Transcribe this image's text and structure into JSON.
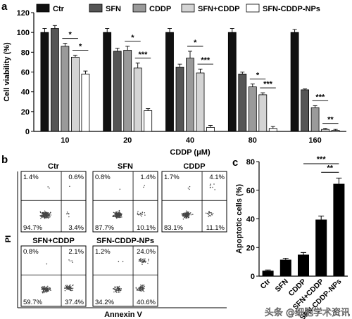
{
  "panels": {
    "a": "a",
    "b": "b",
    "c": "c"
  },
  "chart_data": [
    {
      "type": "bar",
      "panel": "a",
      "xlabel": "CDDP (μM)",
      "ylabel": "Cell viability (%)",
      "ylim": [
        0,
        120
      ],
      "yticks": [
        "0",
        "20",
        "40",
        "60",
        "80",
        "100",
        "120"
      ],
      "categories": [
        "10",
        "20",
        "40",
        "80",
        "160"
      ],
      "legend_placement": "top",
      "series": [
        {
          "name": "Ctr",
          "color": "#111111",
          "values": [
            100,
            100,
            100,
            100,
            100
          ],
          "errors": [
            4,
            4,
            4,
            4,
            3
          ]
        },
        {
          "name": "SFN",
          "color": "#555555",
          "values": [
            104,
            81,
            65,
            58,
            42
          ],
          "errors": [
            3,
            3,
            3,
            2,
            1
          ]
        },
        {
          "name": "CDDP",
          "color": "#9a9a9a",
          "values": [
            86,
            82,
            74,
            45,
            24
          ],
          "errors": [
            3,
            4,
            7,
            3,
            2
          ]
        },
        {
          "name": "SFN+CDDP",
          "color": "#d4d4d4",
          "values": [
            75,
            64,
            59,
            37,
            2
          ],
          "errors": [
            2,
            5,
            4,
            2,
            1
          ]
        },
        {
          "name": "SFN-CDDP-NPs",
          "color": "#ffffff",
          "values": [
            58,
            21,
            4,
            3,
            1
          ],
          "errors": [
            3,
            2,
            2,
            2,
            1
          ]
        }
      ],
      "significance": [
        {
          "group": 0,
          "from": 2,
          "to": 3,
          "label": "*"
        },
        {
          "group": 0,
          "from": 3,
          "to": 4,
          "label": "*"
        },
        {
          "group": 1,
          "from": 2,
          "to": 3,
          "label": "*"
        },
        {
          "group": 1,
          "from": 3,
          "to": 4,
          "label": "***"
        },
        {
          "group": 2,
          "from": 2,
          "to": 3,
          "label": "*"
        },
        {
          "group": 2,
          "from": 3,
          "to": 4,
          "label": "***"
        },
        {
          "group": 3,
          "from": 2,
          "to": 3,
          "label": "*"
        },
        {
          "group": 3,
          "from": 3,
          "to": 4,
          "label": "***"
        },
        {
          "group": 4,
          "from": 2,
          "to": 3,
          "label": "***"
        },
        {
          "group": 4,
          "from": 3,
          "to": 4,
          "label": "**"
        }
      ]
    },
    {
      "type": "scatter",
      "panel": "b",
      "xlabel": "Annexin V",
      "ylabel": "PI",
      "plots": [
        {
          "title": "Ctr",
          "quadrants": [
            "1.4%",
            "0.6%",
            "94.7%",
            "3.4%"
          ]
        },
        {
          "title": "SFN",
          "quadrants": [
            "0.8%",
            "1.4%",
            "87.7%",
            "10.1%"
          ]
        },
        {
          "title": "CDDP",
          "quadrants": [
            "1.7%",
            "4.1%",
            "83.1%",
            "11.1%"
          ]
        },
        {
          "title": "SFN+CDDP",
          "quadrants": [
            "0.8%",
            "2.1%",
            "59.7%",
            "37.4%"
          ]
        },
        {
          "title": "SFN-CDDP-NPs",
          "quadrants": [
            "1.2%",
            "24.0%",
            "34.2%",
            "40.6%"
          ]
        }
      ]
    },
    {
      "type": "bar",
      "panel": "c",
      "ylabel": "Apoptotic cells (%)",
      "ylim": [
        0,
        80
      ],
      "yticks": [
        "0",
        "20",
        "40",
        "60",
        "80"
      ],
      "categories": [
        "Ctr",
        "SFN",
        "CDDP",
        "SFN+CDDP",
        "SFN-CDDP-NPs"
      ],
      "values": [
        3.8,
        11.5,
        15,
        39.5,
        64.5
      ],
      "errors": [
        0.5,
        1,
        1.5,
        2.5,
        4
      ],
      "color": "#000000",
      "significance": [
        {
          "from": 2,
          "to": 4,
          "label": "***"
        },
        {
          "from": 3,
          "to": 4,
          "label": "**"
        }
      ]
    }
  ],
  "watermark": "头条 @细胞学术资讯"
}
